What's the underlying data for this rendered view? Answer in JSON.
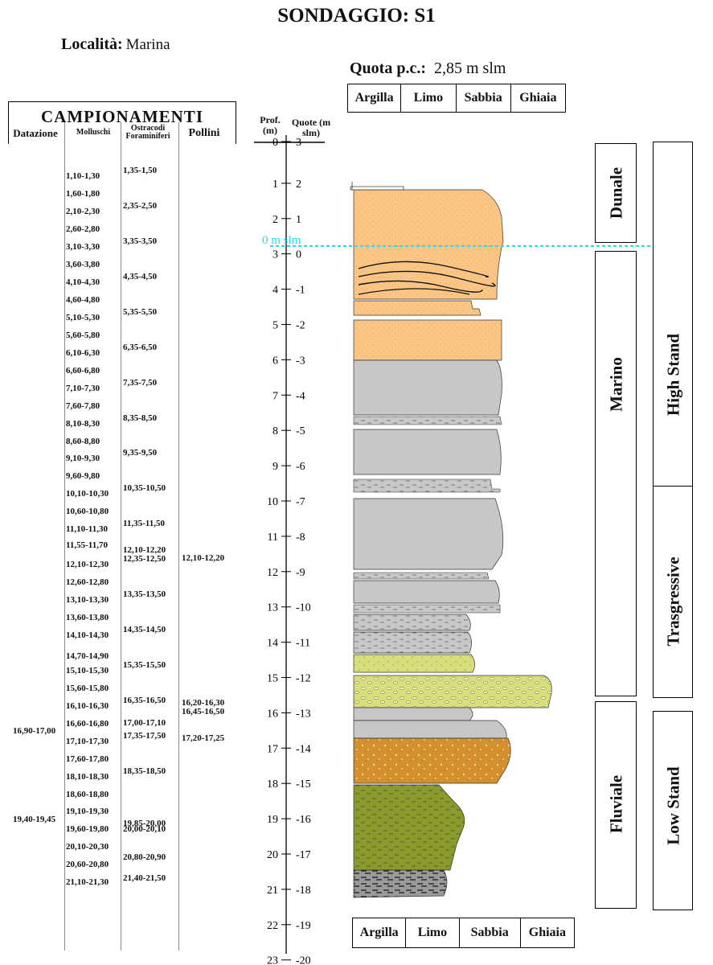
{
  "title": "SONDAGGIO: S1",
  "locality": {
    "label": "Località:",
    "value": "Marina"
  },
  "quota": {
    "label": "Quota p.c.:",
    "value": "2,85 m slm"
  },
  "grain_scale": [
    "Argilla",
    "Limo",
    "Sabbia",
    "Ghiaia"
  ],
  "campionamenti": {
    "title": "CAMPIONAMENTI",
    "columns": [
      "Datazione",
      "Molluschi",
      "Ostracodi Foraminiferi",
      "Pollini"
    ],
    "datazione": [
      "16,90-17,00",
      "19,40-19,45"
    ],
    "molluschi": [
      "1,10-1,30",
      "1,60-1,80",
      "2,10-2,30",
      "2,60-2,80",
      "3,10-3,30",
      "3,60-3,80",
      "4,10-4,30",
      "4,60-4,80",
      "5,10-5,30",
      "5,60-5,80",
      "6,10-6,30",
      "6,60-6,80",
      "7,10-7,30",
      "7,60-7,80",
      "8,10-8,30",
      "8,60-8,80",
      "9,10-9,30",
      "9,60-9,80",
      "10,10-10,30",
      "10,60-10,80",
      "11,10-11,30",
      "11,55-11,70",
      "12,10-12,30",
      "12,60-12,80",
      "13,10-13,30",
      "13,60-13,80",
      "14,10-14,30",
      "14,70-14,90",
      "15,10-15,30",
      "15,60-15,80",
      "16,10-16,30",
      "16,60-16,80",
      "17,10-17,30",
      "17,60-17,80",
      "18,10-18,30",
      "18,60-18,80",
      "19,10-19,30",
      "19,60-19,80",
      "20,10-20,30",
      "20,60-20,80",
      "21,10-21,30"
    ],
    "ostracodi": [
      "1,35-1,50",
      "2,35-2,50",
      "3,35-3,50",
      "4,35-4,50",
      "5,35-5,50",
      "6,35-6,50",
      "7,35-7,50",
      "8,35-8,50",
      "9,35-9,50",
      "10,35-10,50",
      "11,35-11,50",
      "12,10-12,20",
      "12,35-12,50",
      "13,35-13,50",
      "14,35-14,50",
      "15,35-15,50",
      "16,35-16,50",
      "17,00-17,10",
      "17,35-17,50",
      "18,35-18,50",
      "19,85-20,00",
      "20,00-20,10",
      "20,80-20,90",
      "21,40-21,50"
    ],
    "pollini": [
      "12,10-12,20",
      "16,20-16,30",
      "16,45-16,50",
      "17,20-17,25"
    ]
  },
  "depth_axis": {
    "prof_label": "Prof. (m)",
    "quote_label": "Quote (m slm)",
    "prof_ticks": [
      0,
      1,
      2,
      3,
      4,
      5,
      6,
      7,
      8,
      9,
      10,
      11,
      12,
      13,
      14,
      15,
      16,
      17,
      18,
      19,
      20,
      21,
      22,
      23
    ],
    "quote_ticks": [
      3,
      2,
      1,
      0,
      -1,
      -2,
      -3,
      -4,
      -5,
      -6,
      -7,
      -8,
      -9,
      -10,
      -11,
      -12,
      -13,
      -14,
      -15,
      -16,
      -17,
      -18,
      -19,
      -20
    ]
  },
  "sea_level": {
    "label": "0 m slm",
    "color": "#33d6e6"
  },
  "environments": [
    "Dunale",
    "Marino",
    "Fluviale"
  ],
  "systems_tracts": [
    "High Stand",
    "Trasgressive",
    "Low Stand"
  ],
  "colors": {
    "sand": "#fbc585",
    "grey": "#c8c8c8",
    "yellow_green": "#d7df7a",
    "orange": "#d4902f",
    "olive": "#8b9a2c",
    "dark_grey": "#9a9a9a"
  }
}
